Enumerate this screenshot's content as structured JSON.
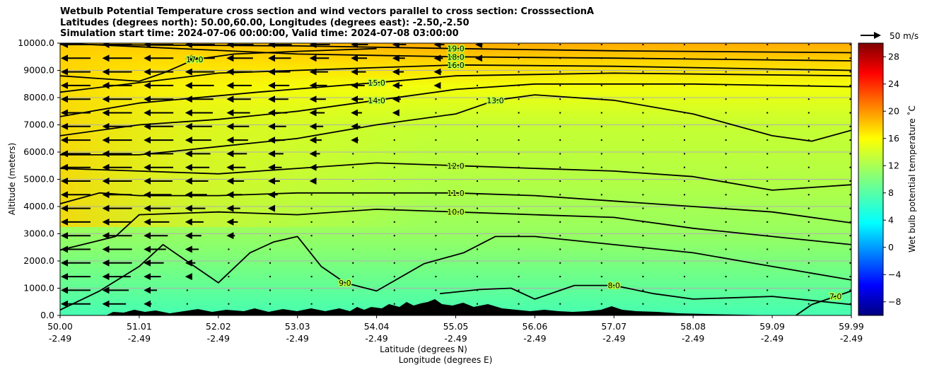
{
  "chart_data": {
    "type": "contour",
    "title_lines": [
      "Wetbulb Potential Temperature cross section and wind vectors parallel to cross section: CrosssectionA",
      "Latitudes (degrees north): 50.00,60.00, Longitudes (degrees east): -2.50,-2.50",
      "Simulation start time: 2024-07-06 00:00:00, Valid time: 2024-07-08 03:00:00"
    ],
    "xlabel_lines": [
      "Latitude (degrees N)",
      "Longitude (degrees E)"
    ],
    "ylabel": "Altitude (meters)",
    "x_ticks": [
      {
        "lat": "50.00",
        "lon": "-2.49"
      },
      {
        "lat": "51.01",
        "lon": "-2.49"
      },
      {
        "lat": "52.02",
        "lon": "-2.49"
      },
      {
        "lat": "53.03",
        "lon": "-2.49"
      },
      {
        "lat": "54.04",
        "lon": "-2.49"
      },
      {
        "lat": "55.05",
        "lon": "-2.49"
      },
      {
        "lat": "56.06",
        "lon": "-2.49"
      },
      {
        "lat": "57.07",
        "lon": "-2.49"
      },
      {
        "lat": "58.08",
        "lon": "-2.49"
      },
      {
        "lat": "59.09",
        "lon": "-2.49"
      },
      {
        "lat": "59.99",
        "lon": "-2.49"
      }
    ],
    "y_ticks": [
      "0.0",
      "1000.0",
      "2000.0",
      "3000.0",
      "4000.0",
      "5000.0",
      "6000.0",
      "7000.0",
      "8000.0",
      "9000.0",
      "10000.0"
    ],
    "ylim": [
      0,
      10000
    ],
    "grid": "horizontal",
    "colorbar": {
      "label": "Wet bulb potential temperature ˚C",
      "range": [
        -10,
        30
      ],
      "ticks": [
        "−8",
        "−4",
        "0",
        "4",
        "8",
        "12",
        "16",
        "20",
        "24",
        "28"
      ],
      "colormap": "jet"
    },
    "vector_key": "50 m/s",
    "contours": [
      {
        "level": "19.0",
        "points": [
          [
            50,
            9.95
          ],
          [
            53,
            9.9
          ],
          [
            55,
            9.8
          ],
          [
            57,
            9.72
          ],
          [
            60,
            9.65
          ]
        ]
      },
      {
        "level": "18.0",
        "points": [
          [
            50,
            10.0
          ],
          [
            53,
            9.6
          ],
          [
            55,
            9.5
          ],
          [
            57,
            9.45
          ],
          [
            60,
            9.35
          ]
        ]
      },
      {
        "level": "17.0",
        "points": [
          [
            50,
            8.8
          ],
          [
            51,
            8.6
          ],
          [
            51.3,
            8.9
          ],
          [
            51.7,
            9.4
          ],
          [
            52.2,
            9.6
          ],
          [
            53,
            9.7
          ],
          [
            54,
            9.8
          ]
        ]
      },
      {
        "level": "16.0",
        "points": [
          [
            50,
            8.2
          ],
          [
            52,
            8.9
          ],
          [
            54,
            9.1
          ],
          [
            55,
            9.2
          ],
          [
            57,
            9.15
          ],
          [
            60,
            9.0
          ]
        ]
      },
      {
        "level": "15.0",
        "points": [
          [
            50,
            7.3
          ],
          [
            51,
            7.8
          ],
          [
            52.5,
            8.2
          ],
          [
            54,
            8.55
          ],
          [
            55,
            8.8
          ],
          [
            57,
            8.9
          ],
          [
            60,
            8.8
          ]
        ]
      },
      {
        "level": "14.0",
        "points": [
          [
            50,
            6.6
          ],
          [
            51,
            7.0
          ],
          [
            52,
            7.2
          ],
          [
            53,
            7.5
          ],
          [
            54,
            7.9
          ],
          [
            55,
            8.3
          ],
          [
            56,
            8.5
          ],
          [
            58,
            8.5
          ],
          [
            60,
            8.4
          ]
        ]
      },
      {
        "level": "13.0",
        "points": [
          [
            50,
            5.9
          ],
          [
            51,
            5.9
          ],
          [
            52,
            6.2
          ],
          [
            53,
            6.5
          ],
          [
            54,
            7.0
          ],
          [
            55,
            7.4
          ],
          [
            55.5,
            7.9
          ],
          [
            56,
            8.1
          ],
          [
            57,
            7.9
          ],
          [
            58,
            7.4
          ],
          [
            59,
            6.6
          ],
          [
            59.5,
            6.4
          ],
          [
            60,
            6.8
          ]
        ]
      },
      {
        "level": "12.0",
        "points": [
          [
            50,
            5.4
          ],
          [
            51,
            5.3
          ],
          [
            52,
            5.2
          ],
          [
            53,
            5.4
          ],
          [
            54,
            5.6
          ],
          [
            55,
            5.5
          ],
          [
            56,
            5.4
          ],
          [
            57,
            5.3
          ],
          [
            58,
            5.1
          ],
          [
            59,
            4.6
          ],
          [
            60,
            4.8
          ]
        ]
      },
      {
        "level": "11.0",
        "points": [
          [
            50,
            4.1
          ],
          [
            50.5,
            4.5
          ],
          [
            51,
            4.4
          ],
          [
            52,
            4.4
          ],
          [
            53,
            4.5
          ],
          [
            54,
            4.5
          ],
          [
            55,
            4.5
          ],
          [
            56,
            4.4
          ],
          [
            57,
            4.2
          ],
          [
            58,
            4.0
          ],
          [
            59,
            3.8
          ],
          [
            60,
            3.4
          ]
        ]
      },
      {
        "level": "10.0",
        "points": [
          [
            50,
            2.4
          ],
          [
            50.7,
            2.9
          ],
          [
            51,
            3.7
          ],
          [
            52,
            3.8
          ],
          [
            53,
            3.7
          ],
          [
            54,
            3.9
          ],
          [
            55,
            3.8
          ],
          [
            56,
            3.7
          ],
          [
            57,
            3.6
          ],
          [
            58,
            3.2
          ],
          [
            59,
            2.9
          ],
          [
            60,
            2.6
          ]
        ]
      },
      {
        "level": "9.0",
        "points": [
          [
            50,
            0.2
          ],
          [
            50.5,
            0.9
          ],
          [
            51,
            1.8
          ],
          [
            51.3,
            2.6
          ],
          [
            51.6,
            2.0
          ],
          [
            52,
            1.2
          ],
          [
            52.4,
            2.3
          ],
          [
            52.7,
            2.7
          ],
          [
            53,
            2.9
          ],
          [
            53.3,
            1.8
          ],
          [
            53.6,
            1.2
          ],
          [
            54,
            0.9
          ],
          [
            54.6,
            1.9
          ],
          [
            55.1,
            2.3
          ],
          [
            55.5,
            2.9
          ],
          [
            56,
            2.9
          ],
          [
            57,
            2.6
          ],
          [
            58,
            2.3
          ],
          [
            59,
            1.8
          ],
          [
            60,
            1.3
          ]
        ]
      },
      {
        "level": "8.0",
        "points": [
          [
            54.8,
            0.8
          ],
          [
            55.3,
            0.95
          ],
          [
            55.7,
            1.0
          ],
          [
            56,
            0.6
          ],
          [
            56.5,
            1.1
          ],
          [
            57,
            1.1
          ],
          [
            57.5,
            0.8
          ],
          [
            58,
            0.6
          ],
          [
            59,
            0.7
          ],
          [
            60,
            0.4
          ]
        ]
      },
      {
        "level": "7.0",
        "points": [
          [
            59.3,
            0.0
          ],
          [
            59.5,
            0.4
          ],
          [
            59.8,
            0.7
          ],
          [
            60,
            0.9
          ]
        ]
      }
    ]
  }
}
